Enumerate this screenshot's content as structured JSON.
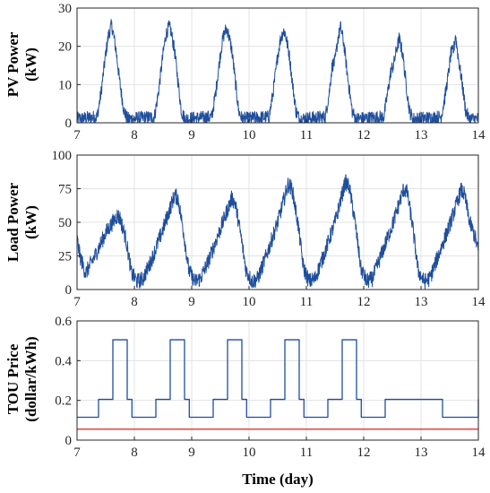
{
  "chart_data": [
    {
      "type": "line",
      "ylabel_line1": "PV Power",
      "ylabel_line2": "(kW)",
      "xlim": [
        7,
        14
      ],
      "ylim": [
        0,
        30
      ],
      "xticks": [
        "7",
        "8",
        "9",
        "10",
        "11",
        "12",
        "13",
        "14"
      ],
      "yticks": [
        "0",
        "10",
        "20",
        "30"
      ],
      "grid": true,
      "series": [
        {
          "color": "#1f4e9c",
          "noise": 1.8,
          "x": [
            7.0,
            7.35,
            7.42,
            7.5,
            7.55,
            7.6,
            7.62,
            7.68,
            7.75,
            7.82,
            7.88,
            8.35,
            8.42,
            8.5,
            8.55,
            8.6,
            8.63,
            8.7,
            8.76,
            8.82,
            8.88,
            9.35,
            9.42,
            9.5,
            9.55,
            9.6,
            9.63,
            9.7,
            9.76,
            9.82,
            9.88,
            10.35,
            10.42,
            10.5,
            10.55,
            10.6,
            10.63,
            10.7,
            10.76,
            10.82,
            10.88,
            11.33,
            11.4,
            11.45,
            11.5,
            11.55,
            11.6,
            11.66,
            11.72,
            11.8,
            11.86,
            12.35,
            12.42,
            12.48,
            12.52,
            12.57,
            12.62,
            12.68,
            12.74,
            12.8,
            12.86,
            13.35,
            13.42,
            13.48,
            13.52,
            13.57,
            13.6,
            13.65,
            13.72,
            13.78,
            13.84,
            14.0
          ],
          "y": [
            1.0,
            1.5,
            8.0,
            18.0,
            23.0,
            25.5,
            24.5,
            19.0,
            10.0,
            3.0,
            1.0,
            1.5,
            8.0,
            18.0,
            23.0,
            25.0,
            24.5,
            19.0,
            11.0,
            3.0,
            1.0,
            1.5,
            8.0,
            18.0,
            22.5,
            24.5,
            24.0,
            19.0,
            11.0,
            3.0,
            1.0,
            1.5,
            8.0,
            17.5,
            22.0,
            24.0,
            23.5,
            18.0,
            10.0,
            3.0,
            1.0,
            1.5,
            8.0,
            15.0,
            16.0,
            22.0,
            25.0,
            20.0,
            12.0,
            3.0,
            1.0,
            1.5,
            8.0,
            14.0,
            15.0,
            19.0,
            22.0,
            18.0,
            10.0,
            3.0,
            1.0,
            1.5,
            7.0,
            13.0,
            18.0,
            19.0,
            23.0,
            17.0,
            10.0,
            3.0,
            1.0,
            1.0
          ]
        }
      ]
    },
    {
      "type": "line",
      "ylabel_line1": "Load Power",
      "ylabel_line2": "(kW)",
      "xlim": [
        7,
        14
      ],
      "ylim": [
        0,
        100
      ],
      "xticks": [
        "7",
        "8",
        "9",
        "10",
        "11",
        "12",
        "13",
        "14"
      ],
      "yticks": [
        "0",
        "25",
        "50",
        "75",
        "100"
      ],
      "grid": true,
      "series": [
        {
          "color": "#1f4e9c",
          "noise": 6,
          "x": [
            7.0,
            7.05,
            7.15,
            7.3,
            7.5,
            7.7,
            7.75,
            7.85,
            7.95,
            8.05,
            8.15,
            8.3,
            8.5,
            8.7,
            8.76,
            8.85,
            8.95,
            9.05,
            9.15,
            9.3,
            9.5,
            9.7,
            9.76,
            9.85,
            9.95,
            10.05,
            10.15,
            10.3,
            10.5,
            10.68,
            10.75,
            10.85,
            10.95,
            11.05,
            11.15,
            11.3,
            11.5,
            11.68,
            11.75,
            11.85,
            11.95,
            12.05,
            12.15,
            12.3,
            12.5,
            12.7,
            12.76,
            12.85,
            12.95,
            13.05,
            13.15,
            13.3,
            13.5,
            13.7,
            13.76,
            13.85,
            13.95,
            14.0
          ],
          "y": [
            38.0,
            25.0,
            12.0,
            24.0,
            42.0,
            55.0,
            53.0,
            38.0,
            12.0,
            6.0,
            8.0,
            22.0,
            45.0,
            70.0,
            68.0,
            45.0,
            14.0,
            6.0,
            8.0,
            22.0,
            45.0,
            68.0,
            64.0,
            42.0,
            14.0,
            6.0,
            8.0,
            25.0,
            50.0,
            78.0,
            75.0,
            50.0,
            16.0,
            6.0,
            8.0,
            25.0,
            50.0,
            80.0,
            76.0,
            50.0,
            16.0,
            6.0,
            8.0,
            25.0,
            48.0,
            75.0,
            72.0,
            48.0,
            14.0,
            6.0,
            8.0,
            25.0,
            48.0,
            74.0,
            70.0,
            50.0,
            38.0,
            28.0
          ]
        }
      ]
    },
    {
      "type": "line",
      "ylabel_line1": "TOU Price",
      "ylabel_line2": "(dollar/kWh)",
      "xlabel": "Time (day)",
      "xlim": [
        7,
        14
      ],
      "ylim": [
        0,
        0.6
      ],
      "xticks": [
        "7",
        "8",
        "9",
        "10",
        "11",
        "12",
        "13",
        "14"
      ],
      "yticks": [
        "0",
        "0.2",
        "0.4",
        "0.6"
      ],
      "grid": true,
      "series": [
        {
          "color": "#1f4e9c",
          "step": true,
          "x": [
            7.0,
            7.375,
            7.625,
            7.875,
            7.958,
            8.375,
            8.625,
            8.875,
            8.958,
            9.375,
            9.625,
            9.875,
            9.958,
            10.375,
            10.625,
            10.875,
            10.958,
            11.375,
            11.625,
            11.875,
            11.958,
            12.375,
            13.375,
            14.0
          ],
          "y": [
            0.115,
            0.205,
            0.505,
            0.205,
            0.115,
            0.205,
            0.505,
            0.205,
            0.115,
            0.205,
            0.505,
            0.205,
            0.115,
            0.205,
            0.505,
            0.205,
            0.115,
            0.205,
            0.505,
            0.205,
            0.115,
            0.205,
            0.115,
            0.205
          ]
        },
        {
          "color": "#e0312b",
          "x": [
            7.0,
            14.0
          ],
          "y": [
            0.055,
            0.055
          ]
        }
      ]
    }
  ]
}
